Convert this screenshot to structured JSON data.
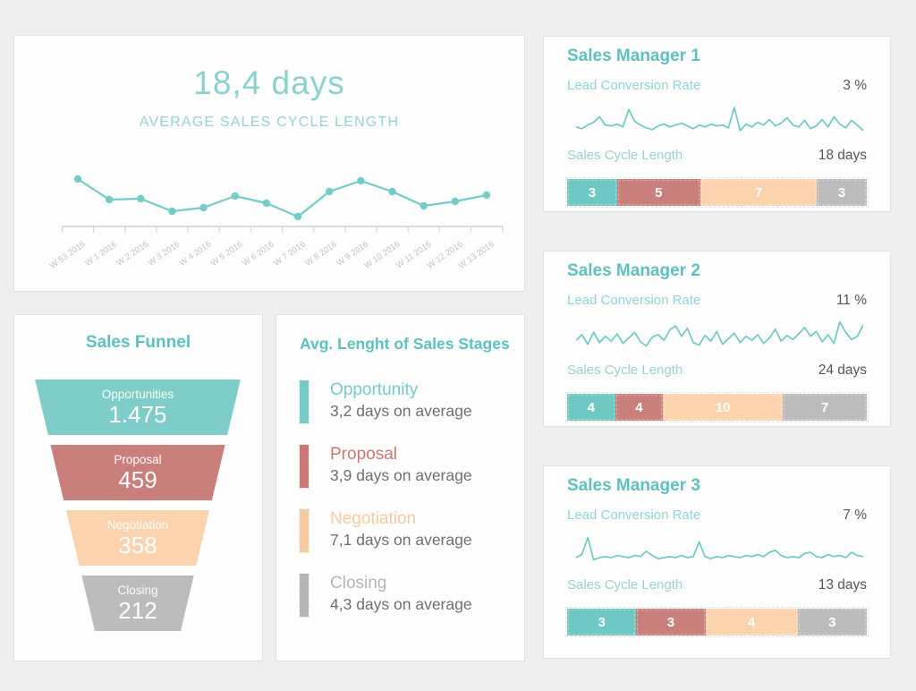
{
  "palette": {
    "teal": "#6fc8c4",
    "rose": "#c9807c",
    "peach": "#fbd3ae",
    "gray": "#bcbcbc",
    "title_teal": "#5ec0c1",
    "label_teal": "#95d3d4",
    "big_teal": "#8bd2cf",
    "value_dark": "#55565a",
    "axis": "#ccd4dc",
    "axis_label": "#bdc2ca"
  },
  "cycle_card": {
    "big_value": "18,4 days",
    "subtitle": "AVERAGE SALES CYCLE LENGTH"
  },
  "funnel_card": {
    "title": "Sales Funnel",
    "stages": [
      {
        "label": "Opportunities",
        "value": "1.475",
        "color": "#7ecdc9"
      },
      {
        "label": "Proposal",
        "value": "459",
        "color": "#c9807c"
      },
      {
        "label": "Negotiation",
        "value": "358",
        "color": "#fbd3ae"
      },
      {
        "label": "Closing",
        "value": "212",
        "color": "#bcbcbc"
      }
    ]
  },
  "stages_card": {
    "title": "Avg. Lenght of Sales Stages",
    "items": [
      {
        "name": "Opportunity",
        "days": "3,2 days on average",
        "color": "#72cbc7"
      },
      {
        "name": "Proposal",
        "days": "3,9 days on average",
        "color": "#cb7773"
      },
      {
        "name": "Negotiation",
        "days": "7,1 days on average",
        "color": "#f9c9a0"
      },
      {
        "name": "Closing",
        "days": "4,3 days on average",
        "color": "#b5b5b5"
      }
    ]
  },
  "managers": [
    {
      "title": "Sales Manager 1",
      "lcr_label": "Lead Conversion Rate",
      "lcr_value": "3 %",
      "scl_label": "Sales Cycle Length",
      "scl_value": "18 days"
    },
    {
      "title": "Sales Manager 2",
      "lcr_label": "Lead Conversion Rate",
      "lcr_value": "11 %",
      "scl_label": "Sales Cycle Length",
      "scl_value": "24 days"
    },
    {
      "title": "Sales Manager 3",
      "lcr_label": "Lead Conversion Rate",
      "lcr_value": "7 %",
      "scl_label": "Sales Cycle Length",
      "scl_value": "13 days"
    }
  ],
  "chart_data": [
    {
      "type": "line",
      "title": "18,4 days",
      "subtitle": "AVERAGE SALES CYCLE LENGTH",
      "x": [
        "W 53 2015",
        "W 1 2016",
        "W 2 2016",
        "W 3 2016",
        "W 4 2016",
        "W 5 2016",
        "W 6 2016",
        "W 7 2016",
        "W 8 2016",
        "W 9 2016",
        "W 10 2016",
        "W 11 2016",
        "W 12 2016",
        "W 13 2016"
      ],
      "values": [
        21.0,
        18.7,
        18.8,
        17.4,
        17.8,
        19.1,
        18.3,
        16.8,
        19.6,
        20.8,
        19.6,
        18.0,
        18.5,
        19.2
      ],
      "ylabel": "days",
      "ylim": [
        16.6,
        21.2
      ],
      "grid": false,
      "show_points": true,
      "color": "#74cbc7"
    },
    {
      "type": "funnel",
      "title": "Sales Funnel",
      "categories": [
        "Opportunities",
        "Proposal",
        "Negotiation",
        "Closing"
      ],
      "values": [
        1475,
        459,
        358,
        212
      ],
      "value_labels": [
        "1.475",
        "459",
        "358",
        "212"
      ],
      "colors": [
        "#7ecdc9",
        "#c9807c",
        "#fbd3ae",
        "#bcbcbc"
      ]
    },
    {
      "type": "bar",
      "title": "Avg. Lenght of Sales Stages",
      "categories": [
        "Opportunity",
        "Proposal",
        "Negotiation",
        "Closing"
      ],
      "values": [
        3.2,
        3.9,
        7.1,
        4.3
      ],
      "value_labels": [
        "3,2 days on average",
        "3,9 days on average",
        "7,1 days on average",
        "4,3 days on average"
      ],
      "colors": [
        "#72cbc7",
        "#cb7773",
        "#f9c9a0",
        "#b5b5b5"
      ]
    },
    {
      "type": "line",
      "title": "Sales Manager 1 - Lead Conversion Rate",
      "current_value": "3 %",
      "values": [
        2.8,
        2.6,
        3.0,
        3.3,
        3.9,
        3.0,
        2.9,
        3.1,
        2.8,
        4.7,
        3.4,
        3.0,
        2.7,
        2.5,
        2.9,
        3.1,
        2.8,
        3.0,
        3.2,
        2.9,
        2.6,
        3.0,
        2.8,
        3.1,
        2.9,
        3.0,
        2.7,
        4.9,
        2.4,
        3.1,
        2.8,
        3.3,
        3.0,
        3.6,
        2.9,
        3.2,
        3.8,
        3.0,
        2.8,
        3.5,
        2.6,
        2.9,
        3.6,
        2.8,
        3.9,
        3.1,
        2.7,
        3.5,
        3.0,
        2.4
      ],
      "color": "#6ec9c5"
    },
    {
      "type": "stacked-bar",
      "title": "Sales Manager 1 - Sales Cycle Length",
      "total_label": "18 days",
      "segments": [
        "Opportunity",
        "Proposal",
        "Negotiation",
        "Closing"
      ],
      "values": [
        3,
        5,
        7,
        3
      ],
      "colors": [
        "#6fc8c4",
        "#c9807c",
        "#fbd3ae",
        "#bcbcbc"
      ]
    },
    {
      "type": "line",
      "title": "Sales Manager 2 - Lead Conversion Rate",
      "current_value": "11 %",
      "values": [
        10.5,
        11.2,
        10.0,
        11.5,
        10.2,
        11.0,
        10.4,
        11.3,
        10.1,
        10.8,
        11.5,
        10.3,
        9.8,
        10.9,
        11.2,
        10.5,
        11.8,
        12.3,
        11.0,
        12.0,
        10.2,
        9.9,
        11.1,
        10.4,
        11.6,
        10.0,
        10.7,
        11.4,
        10.2,
        11.0,
        10.5,
        11.2,
        10.1,
        10.8,
        11.9,
        10.4,
        11.1,
        10.6,
        11.3,
        12.1,
        11.0,
        11.6,
        10.3,
        11.2,
        10.1,
        12.8,
        11.5,
        10.6,
        11.0,
        12.4
      ],
      "color": "#6ec9c5"
    },
    {
      "type": "stacked-bar",
      "title": "Sales Manager 2 - Sales Cycle Length",
      "total_label": "24 days",
      "segments": [
        "Opportunity",
        "Proposal",
        "Negotiation",
        "Closing"
      ],
      "values": [
        4,
        4,
        10,
        7
      ],
      "colors": [
        "#6fc8c4",
        "#c9807c",
        "#fbd3ae",
        "#bcbcbc"
      ]
    },
    {
      "type": "line",
      "title": "Sales Manager 3 - Lead Conversion Rate",
      "current_value": "7 %",
      "values": [
        6.4,
        6.7,
        8.3,
        6.2,
        6.4,
        6.5,
        6.4,
        6.6,
        6.5,
        6.4,
        6.6,
        6.5,
        7.0,
        6.6,
        6.3,
        6.4,
        6.5,
        6.4,
        6.6,
        6.4,
        6.5,
        7.9,
        6.5,
        6.3,
        6.5,
        6.4,
        6.6,
        6.5,
        6.4,
        6.6,
        6.5,
        6.7,
        6.5,
        6.9,
        7.1,
        6.6,
        6.4,
        6.5,
        6.4,
        6.8,
        6.9,
        6.5,
        6.4,
        6.7,
        6.5,
        6.6,
        6.4,
        6.9,
        6.6,
        6.5
      ],
      "color": "#6ec9c5"
    },
    {
      "type": "stacked-bar",
      "title": "Sales Manager 3 - Sales Cycle Length",
      "total_label": "13 days",
      "segments": [
        "Opportunity",
        "Proposal",
        "Negotiation",
        "Closing"
      ],
      "values": [
        3,
        3,
        4,
        3
      ],
      "colors": [
        "#6fc8c4",
        "#c9807c",
        "#fbd3ae",
        "#bcbcbc"
      ]
    }
  ]
}
